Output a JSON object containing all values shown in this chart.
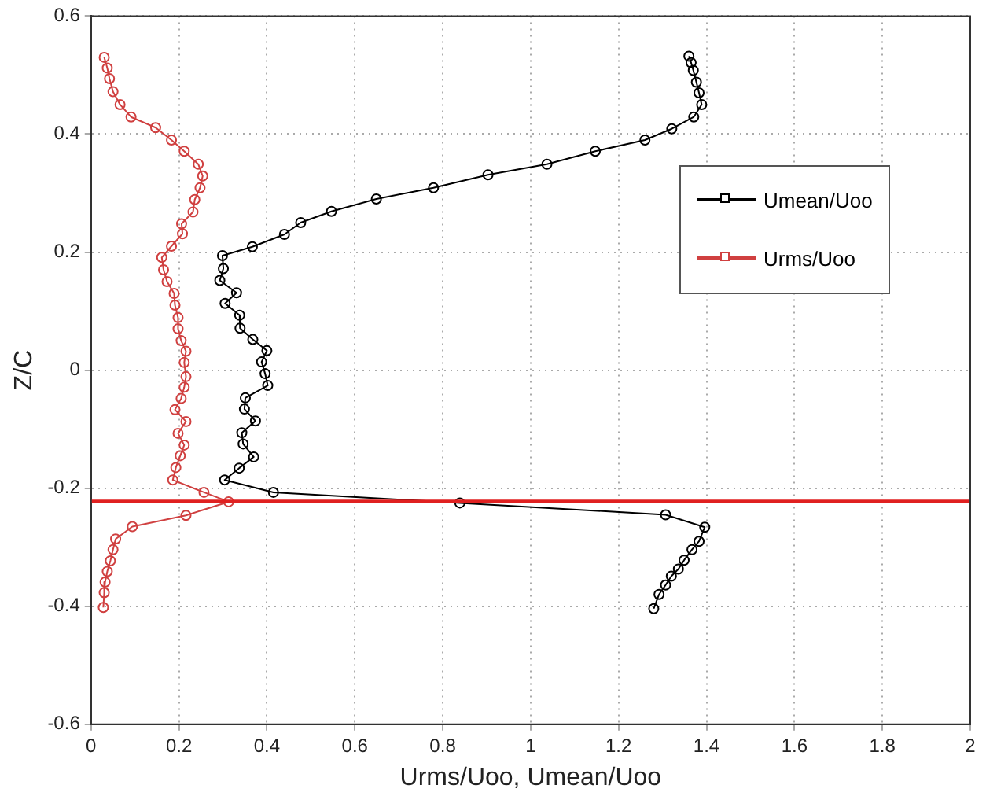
{
  "chart_data": {
    "type": "line",
    "xlabel": "Urms/Uoo, Umean/Uoo",
    "ylabel": "Z/C",
    "xlim": [
      0,
      2
    ],
    "xticks": [
      0,
      0.2,
      0.4,
      0.6,
      0.8,
      1,
      1.2,
      1.4,
      1.6,
      1.8,
      2
    ],
    "ylim": [
      -0.6,
      0.6
    ],
    "yticks": [
      -0.6,
      -0.4,
      -0.2,
      0,
      0.2,
      0.4,
      0.6
    ],
    "grid": true,
    "legend": "top right",
    "marker": "circle",
    "line_style": "solid",
    "ref_lines": [
      {
        "axis": "y",
        "value": -0.222,
        "color": "#e02020"
      }
    ],
    "series": [
      {
        "name": "Umean/Uoo",
        "color": "#000000",
        "x": [
          1.36,
          1.365,
          1.37,
          1.377,
          1.383,
          1.389,
          1.371,
          1.321,
          1.26,
          1.147,
          1.037,
          0.903,
          0.779,
          0.649,
          0.547,
          0.477,
          0.44,
          0.367,
          0.299,
          0.301,
          0.293,
          0.331,
          0.305,
          0.338,
          0.339,
          0.368,
          0.4,
          0.388,
          0.396,
          0.402,
          0.351,
          0.349,
          0.374,
          0.343,
          0.346,
          0.37,
          0.337,
          0.304,
          0.415,
          0.839,
          1.307,
          1.396,
          1.383,
          1.367,
          1.349,
          1.336,
          1.32,
          1.307,
          1.292,
          1.28
        ],
        "values": [
          0.532,
          0.521,
          0.508,
          0.488,
          0.47,
          0.45,
          0.429,
          0.409,
          0.39,
          0.371,
          0.349,
          0.331,
          0.309,
          0.29,
          0.269,
          0.25,
          0.23,
          0.209,
          0.194,
          0.172,
          0.152,
          0.131,
          0.113,
          0.093,
          0.071,
          0.052,
          0.033,
          0.014,
          -0.006,
          -0.026,
          -0.047,
          -0.066,
          -0.086,
          -0.106,
          -0.125,
          -0.147,
          -0.166,
          -0.186,
          -0.207,
          -0.225,
          -0.245,
          -0.266,
          -0.29,
          -0.304,
          -0.322,
          -0.337,
          -0.349,
          -0.364,
          -0.38,
          -0.404
        ]
      },
      {
        "name": "Urms/Uoo",
        "color": "#d04040",
        "x": [
          0.03,
          0.037,
          0.042,
          0.05,
          0.066,
          0.091,
          0.147,
          0.183,
          0.212,
          0.244,
          0.254,
          0.248,
          0.236,
          0.232,
          0.206,
          0.208,
          0.183,
          0.161,
          0.165,
          0.173,
          0.189,
          0.191,
          0.198,
          0.198,
          0.205,
          0.216,
          0.212,
          0.216,
          0.212,
          0.205,
          0.191,
          0.216,
          0.198,
          0.212,
          0.203,
          0.193,
          0.186,
          0.257,
          0.313,
          0.216,
          0.094,
          0.056,
          0.05,
          0.044,
          0.037,
          0.032,
          0.03,
          0.028
        ],
        "values": [
          0.53,
          0.512,
          0.494,
          0.472,
          0.45,
          0.429,
          0.411,
          0.39,
          0.371,
          0.349,
          0.329,
          0.309,
          0.289,
          0.268,
          0.248,
          0.231,
          0.21,
          0.191,
          0.17,
          0.15,
          0.13,
          0.11,
          0.089,
          0.07,
          0.05,
          0.032,
          0.013,
          -0.011,
          -0.029,
          -0.048,
          -0.067,
          -0.087,
          -0.107,
          -0.127,
          -0.145,
          -0.165,
          -0.186,
          -0.207,
          -0.223,
          -0.246,
          -0.265,
          -0.286,
          -0.304,
          -0.323,
          -0.341,
          -0.359,
          -0.377,
          -0.402
        ]
      }
    ]
  }
}
